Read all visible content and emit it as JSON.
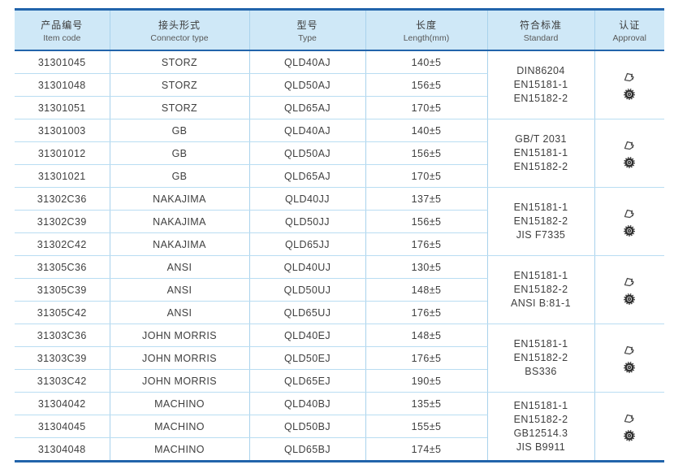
{
  "colors": {
    "accent_border": "#2264ab",
    "header_bg": "#cfe8f7",
    "row_line": "#b9ddf2",
    "body_text": "#3f3f3f"
  },
  "header": {
    "columns": [
      {
        "zh": "产品编号",
        "en": "Item code"
      },
      {
        "zh": "接头形式",
        "en": "Connector type"
      },
      {
        "zh": "型号",
        "en": "Type"
      },
      {
        "zh": "长度",
        "en": "Length(mm)"
      },
      {
        "zh": "符合标准",
        "en": "Standard"
      },
      {
        "zh": "认证",
        "en": "Approval"
      }
    ]
  },
  "table": {
    "groups": [
      {
        "rows": [
          {
            "item_code": "31301045",
            "connector_type": "STORZ",
            "type": "QLD40AJ",
            "length": "140±5"
          },
          {
            "item_code": "31301048",
            "connector_type": "STORZ",
            "type": "QLD50AJ",
            "length": "156±5"
          },
          {
            "item_code": "31301051",
            "connector_type": "STORZ",
            "type": "QLD65AJ",
            "length": "170±5"
          }
        ],
        "standards": [
          "DIN86204",
          "EN15181-1",
          "EN15182-2"
        ],
        "approval_icons": [
          "certificate-stamp-icon",
          "certification-seal-icon"
        ]
      },
      {
        "rows": [
          {
            "item_code": "31301003",
            "connector_type": "GB",
            "type": "QLD40AJ",
            "length": "140±5"
          },
          {
            "item_code": "31301012",
            "connector_type": "GB",
            "type": "QLD50AJ",
            "length": "156±5"
          },
          {
            "item_code": "31301021",
            "connector_type": "GB",
            "type": "QLD65AJ",
            "length": "170±5"
          }
        ],
        "standards": [
          "GB/T 2031",
          "EN15181-1",
          "EN15182-2"
        ],
        "approval_icons": [
          "certificate-stamp-icon",
          "certification-seal-icon"
        ]
      },
      {
        "rows": [
          {
            "item_code": "31302C36",
            "connector_type": "NAKAJIMA",
            "type": "QLD40JJ",
            "length": "137±5"
          },
          {
            "item_code": "31302C39",
            "connector_type": "NAKAJIMA",
            "type": "QLD50JJ",
            "length": "156±5"
          },
          {
            "item_code": "31302C42",
            "connector_type": "NAKAJIMA",
            "type": "QLD65JJ",
            "length": "176±5"
          }
        ],
        "standards": [
          "EN15181-1",
          "EN15182-2",
          "JIS F7335"
        ],
        "approval_icons": [
          "certificate-stamp-icon",
          "certification-seal-icon"
        ]
      },
      {
        "rows": [
          {
            "item_code": "31305C36",
            "connector_type": "ANSI",
            "type": "QLD40UJ",
            "length": "130±5"
          },
          {
            "item_code": "31305C39",
            "connector_type": "ANSI",
            "type": "QLD50UJ",
            "length": "148±5"
          },
          {
            "item_code": "31305C42",
            "connector_type": "ANSI",
            "type": "QLD65UJ",
            "length": "176±5"
          }
        ],
        "standards": [
          "EN15181-1",
          "EN15182-2",
          "ANSI B:81-1"
        ],
        "approval_icons": [
          "certificate-stamp-icon",
          "certification-seal-icon"
        ]
      },
      {
        "rows": [
          {
            "item_code": "31303C36",
            "connector_type": "JOHN MORRIS",
            "type": "QLD40EJ",
            "length": "148±5"
          },
          {
            "item_code": "31303C39",
            "connector_type": "JOHN MORRIS",
            "type": "QLD50EJ",
            "length": "176±5"
          },
          {
            "item_code": "31303C42",
            "connector_type": "JOHN MORRIS",
            "type": "QLD65EJ",
            "length": "190±5"
          }
        ],
        "standards": [
          "EN15181-1",
          "EN15182-2",
          "BS336"
        ],
        "approval_icons": [
          "certificate-stamp-icon",
          "certification-seal-icon"
        ]
      },
      {
        "rows": [
          {
            "item_code": "31304042",
            "connector_type": "MACHINO",
            "type": "QLD40BJ",
            "length": "135±5"
          },
          {
            "item_code": "31304045",
            "connector_type": "MACHINO",
            "type": "QLD50BJ",
            "length": "155±5"
          },
          {
            "item_code": "31304048",
            "connector_type": "MACHINO",
            "type": "QLD65BJ",
            "length": "174±5"
          }
        ],
        "standards": [
          "EN15181-1",
          "EN15182-2",
          "GB12514.3",
          "JIS B9911"
        ],
        "approval_icons": [
          "certificate-stamp-icon",
          "certification-seal-icon"
        ]
      }
    ]
  }
}
